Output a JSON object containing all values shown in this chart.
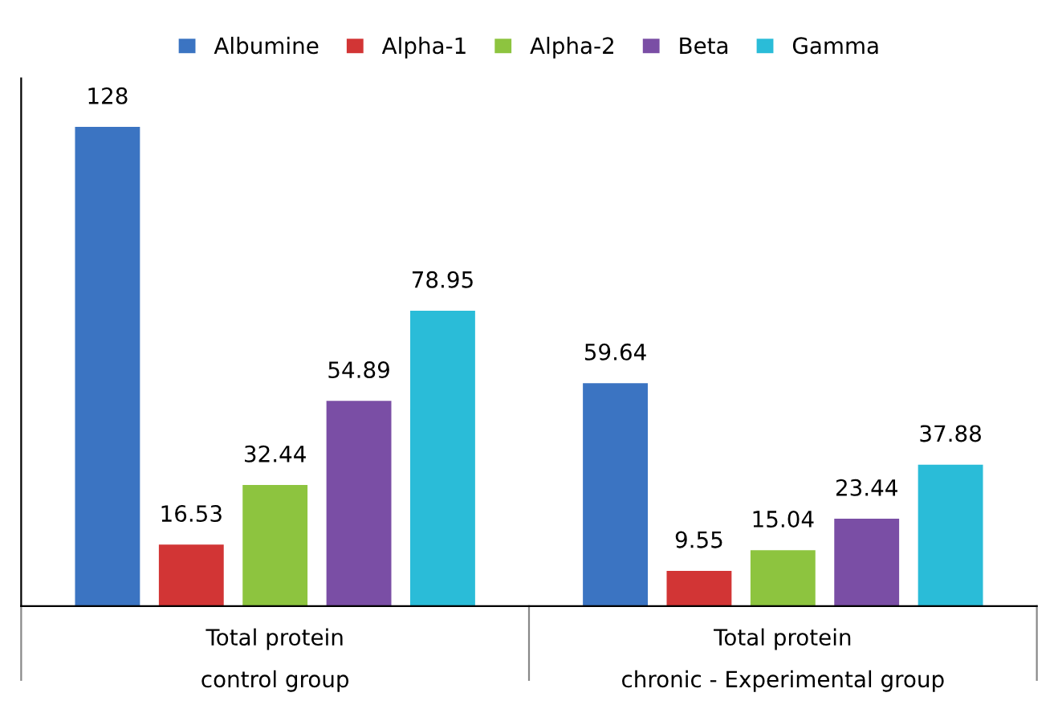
{
  "chart_data": {
    "type": "bar",
    "categories": [
      "Total protein\ncontrol group",
      "Total protein\nchronic - Experimental group"
    ],
    "series": [
      {
        "name": "Albumine",
        "color": "#3b74c2",
        "values": [
          128,
          59.64
        ]
      },
      {
        "name": "Alpha-1",
        "color": "#d23535",
        "values": [
          16.53,
          9.55
        ]
      },
      {
        "name": "Alpha-2",
        "color": "#8dc43f",
        "values": [
          32.44,
          15.04
        ]
      },
      {
        "name": "Beta",
        "color": "#7a4ea5",
        "values": [
          54.89,
          23.44
        ]
      },
      {
        "name": "Gamma",
        "color": "#2abcd8",
        "values": [
          78.95,
          37.88
        ]
      }
    ],
    "data_labels": true,
    "legend": "top",
    "grid": false
  }
}
